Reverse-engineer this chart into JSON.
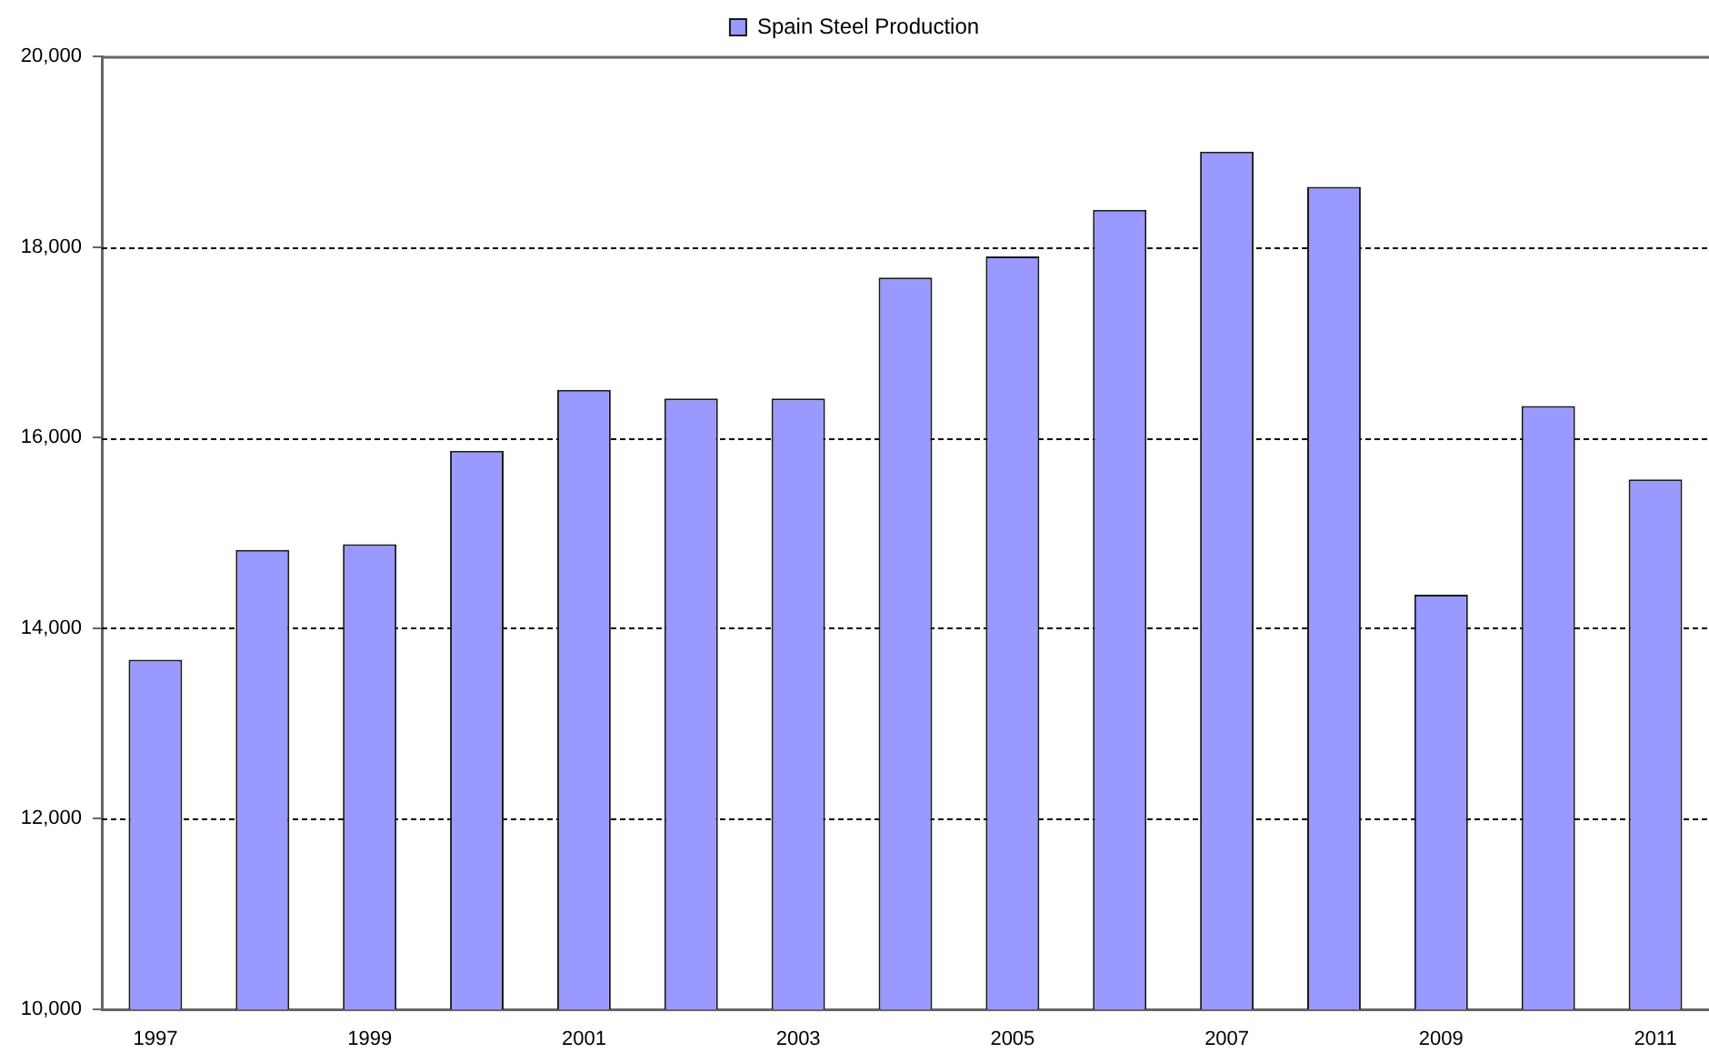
{
  "chart_data": {
    "type": "bar",
    "categories": [
      "1997",
      null,
      "1999",
      null,
      "2001",
      null,
      "2003",
      null,
      "2005",
      null,
      "2007",
      null,
      "2009",
      null,
      "2011"
    ],
    "series": [
      {
        "name": "Spain Steel Production",
        "color": "#9999ff",
        "values": [
          13670,
          14820,
          14880,
          15860,
          16500,
          16410,
          16410,
          17680,
          17900,
          18390,
          19000,
          18630,
          14350,
          16330,
          15560
        ]
      }
    ],
    "ylim": [
      10000,
      20000
    ],
    "yticks": [
      {
        "value": 10000,
        "label": "10,000"
      },
      {
        "value": 12000,
        "label": "12,000"
      },
      {
        "value": 14000,
        "label": "14,000"
      },
      {
        "value": 16000,
        "label": "16,000"
      },
      {
        "value": 18000,
        "label": "18,000"
      },
      {
        "value": 20000,
        "label": "20,000"
      }
    ],
    "grid": "y",
    "legend": "top"
  }
}
